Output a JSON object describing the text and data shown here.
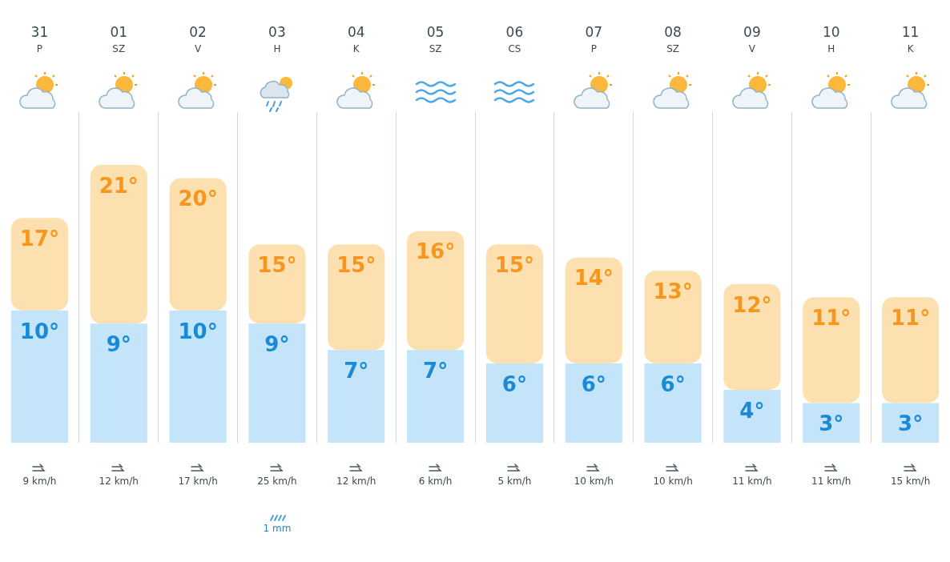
{
  "chart_data": {
    "type": "bar",
    "stacked": true,
    "categories": [
      "31 P",
      "01 SZ",
      "02 V",
      "03 H",
      "04 K",
      "05 SZ",
      "06 CS",
      "07 P",
      "08 SZ",
      "09 V",
      "10 H",
      "11 K"
    ],
    "series": [
      {
        "color": "#c3e4f9",
        "values": [
          10,
          9,
          10,
          9,
          7,
          7,
          6,
          6,
          6,
          4,
          3,
          3
        ],
        "value_labels": [
          "10°",
          "9°",
          "10°",
          "9°",
          "7°",
          "7°",
          "6°",
          "6°",
          "6°",
          "4°",
          "3°",
          "3°"
        ]
      },
      {
        "color": "#fde0b0",
        "values": [
          7,
          12,
          10,
          6,
          8,
          9,
          9,
          8,
          7,
          8,
          8,
          8
        ]
      }
    ],
    "totals": [
      "17°",
      "21°",
      "20°",
      "15°",
      "15°",
      "16°",
      "15°",
      "14°",
      "13°",
      "12°",
      "11°",
      "11°"
    ],
    "tick_labels": "x",
    "grid": "x",
    "legend": false,
    "annotations": [
      "9 km/h",
      "12 km/h",
      "17 km/h",
      "25 km/h",
      "1 mm",
      "12 km/h",
      "6 km/h",
      "5 km/h",
      "10 km/h",
      "10 km/h",
      "11 km/h",
      "11 km/h",
      "15 km/h"
    ]
  }
}
